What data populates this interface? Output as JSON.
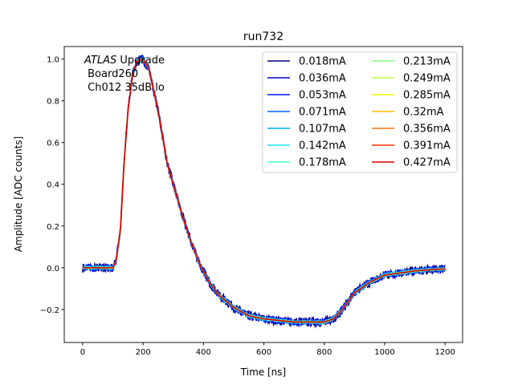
{
  "chart_data": {
    "type": "line",
    "title": "run732",
    "xlabel": "Time [ns]",
    "ylabel": "Amplitude [ADC counts]",
    "xlim": [
      -61,
      1258
    ],
    "ylim": [
      -0.358,
      1.06
    ],
    "xticks": [
      0,
      200,
      400,
      600,
      800,
      1000,
      1200
    ],
    "yticks": [
      -0.2,
      0.0,
      0.2,
      0.4,
      0.6,
      0.8,
      1.0
    ],
    "xtick_labels": [
      "0",
      "200",
      "400",
      "600",
      "800",
      "1000",
      "1200"
    ],
    "ytick_labels": [
      "−0.2",
      "0.0",
      "0.2",
      "0.4",
      "0.6",
      "0.8",
      "1.0"
    ],
    "grid": false,
    "legend_placement": "upper-right",
    "legend_columns": 2,
    "annotation": {
      "italic": "ATLAS",
      "rest": " Upgrade",
      "line2": " Board260",
      "line3": " Ch012 35dB lo"
    },
    "x": [
      0,
      100,
      110,
      125,
      137,
      150,
      165,
      180,
      200,
      220,
      250,
      280,
      300,
      330,
      360,
      390,
      420,
      450,
      500,
      550,
      600,
      700,
      800,
      830,
      860,
      900,
      950,
      1000,
      1100,
      1200
    ],
    "y": [
      0,
      0,
      0.03,
      0.18,
      0.5,
      0.75,
      0.93,
      0.99,
      1.0,
      0.95,
      0.75,
      0.5,
      0.4,
      0.25,
      0.12,
      0.01,
      -0.07,
      -0.13,
      -0.19,
      -0.23,
      -0.245,
      -0.26,
      -0.26,
      -0.245,
      -0.2,
      -0.12,
      -0.07,
      -0.035,
      -0.015,
      -0.005
    ],
    "series": [
      {
        "name": "0.018mA",
        "color": "#00007f"
      },
      {
        "name": "0.036mA",
        "color": "#0000c8"
      },
      {
        "name": "0.053mA",
        "color": "#0010ff"
      },
      {
        "name": "0.071mA",
        "color": "#0060ff"
      },
      {
        "name": "0.107mA",
        "color": "#00a8ff"
      },
      {
        "name": "0.142mA",
        "color": "#1ae4f0"
      },
      {
        "name": "0.178mA",
        "color": "#40ffb7"
      },
      {
        "name": "0.213mA",
        "color": "#7dff7a"
      },
      {
        "name": "0.249mA",
        "color": "#b7ff40"
      },
      {
        "name": "0.285mA",
        "color": "#f0f600"
      },
      {
        "name": "0.32mA",
        "color": "#ffb900"
      },
      {
        "name": "0.356mA",
        "color": "#ff7300"
      },
      {
        "name": "0.391mA",
        "color": "#ff3000"
      },
      {
        "name": "0.427mA",
        "color": "#d40000"
      }
    ]
  }
}
